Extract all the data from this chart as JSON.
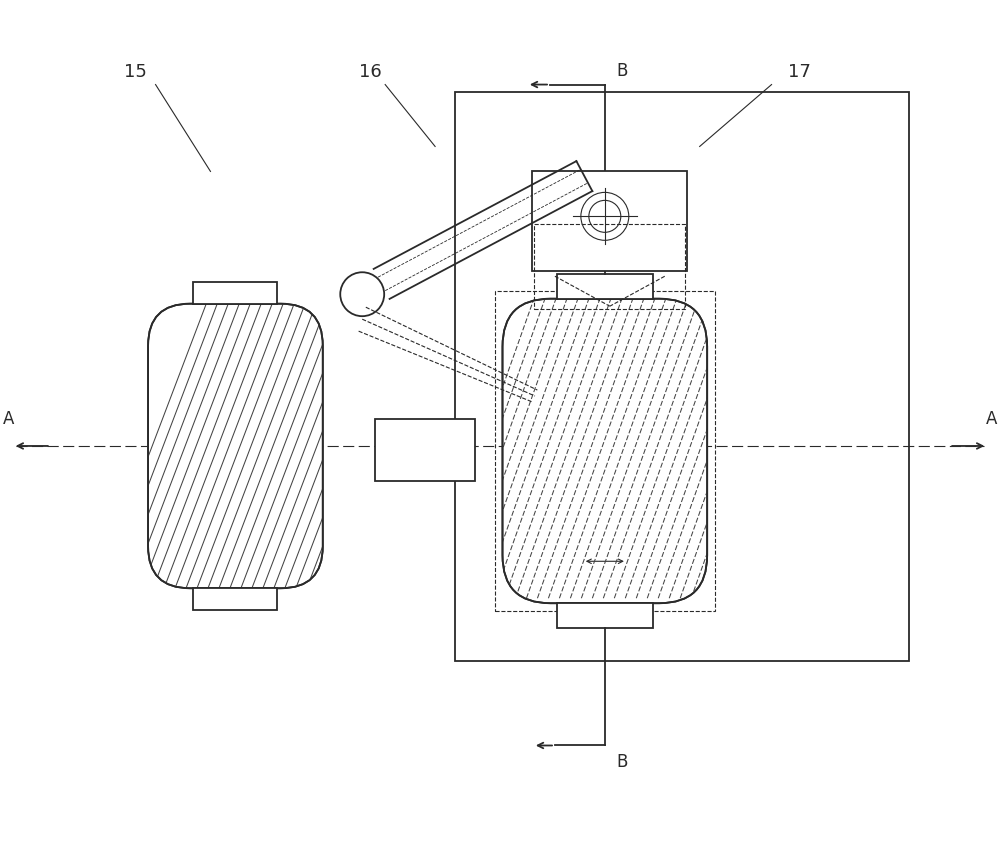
{
  "bg_color": "#ffffff",
  "line_color": "#2a2a2a",
  "hatch_color": "#555555",
  "label_15": "15",
  "label_16": "16",
  "label_17": "17",
  "label_A": "A",
  "label_B": "B",
  "figsize": [
    10.0,
    8.56
  ],
  "dpi": 100
}
